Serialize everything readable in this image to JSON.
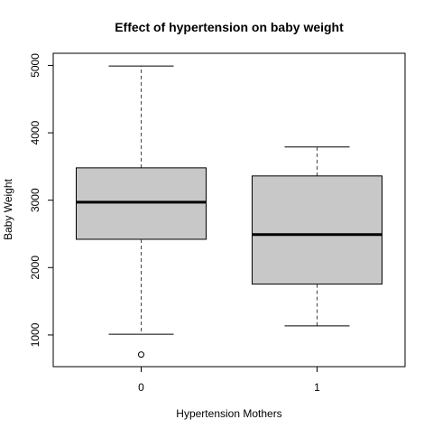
{
  "chart_data": {
    "type": "boxplot",
    "title": "Effect of hypertension on baby weight",
    "xlabel": "Hypertension Mothers",
    "ylabel": "Baby Weight",
    "ylim": [
      530,
      5180
    ],
    "y_ticks": [
      1000,
      2000,
      3000,
      4000,
      5000
    ],
    "categories": [
      "0",
      "1"
    ],
    "boxes": [
      {
        "category": "0",
        "whisker_low": 1010,
        "q1": 2420,
        "median": 2970,
        "q3": 3480,
        "whisker_high": 4990,
        "outliers": [
          709
        ]
      },
      {
        "category": "1",
        "whisker_low": 1135,
        "q1": 1755,
        "median": 2490,
        "q3": 3360,
        "whisker_high": 3790,
        "outliers": []
      }
    ],
    "grid": false,
    "colors": {
      "box_fill": "#c8c8c8",
      "stroke": "#000000",
      "whisker": "#444444"
    }
  }
}
